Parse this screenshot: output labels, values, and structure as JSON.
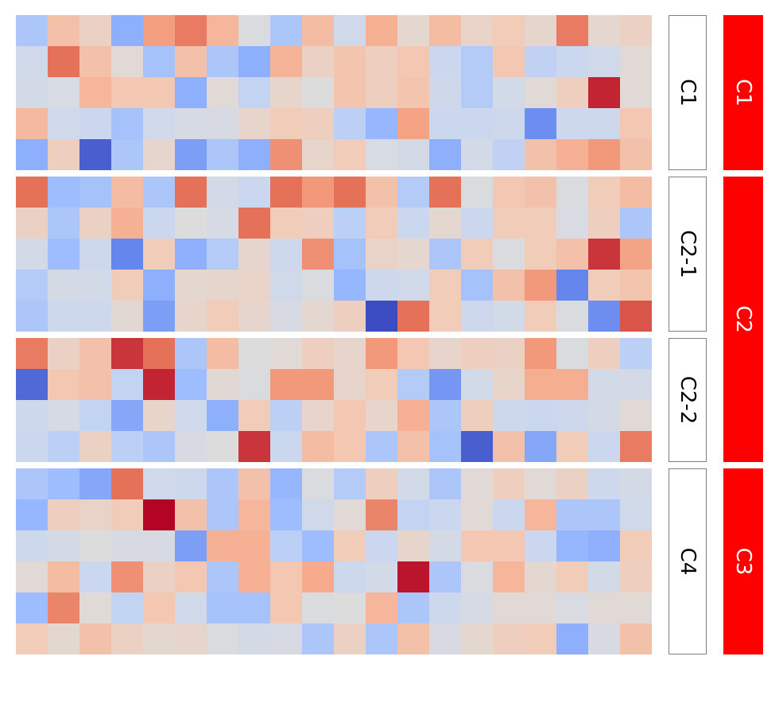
{
  "chart_data": {
    "type": "heatmap",
    "colormap": {
      "name": "coolwarm",
      "range": [
        0,
        1
      ],
      "stops": [
        "#3b4cc0",
        "#6788ee",
        "#9abbff",
        "#c9d7f0",
        "#dddcdc",
        "#f2cbb7",
        "#f7a889",
        "#e26952",
        "#b40426"
      ]
    },
    "columns": 20,
    "row_groups": [
      {
        "label": "C1",
        "rows": [
          [
            0.3,
            0.66,
            0.58,
            0.22,
            0.77,
            0.84,
            0.7,
            0.48,
            0.3,
            0.68,
            0.42,
            0.72,
            0.54,
            0.68,
            0.57,
            0.62,
            0.55,
            0.84,
            0.54,
            0.58
          ],
          [
            0.42,
            0.86,
            0.66,
            0.52,
            0.28,
            0.66,
            0.3,
            0.22,
            0.71,
            0.58,
            0.65,
            0.6,
            0.64,
            0.38,
            0.32,
            0.64,
            0.35,
            0.38,
            0.42,
            0.52
          ],
          [
            0.43,
            0.47,
            0.7,
            0.64,
            0.64,
            0.22,
            0.52,
            0.36,
            0.56,
            0.5,
            0.65,
            0.6,
            0.65,
            0.41,
            0.32,
            0.43,
            0.52,
            0.6,
            0.96,
            0.52
          ],
          [
            0.69,
            0.42,
            0.38,
            0.28,
            0.42,
            0.45,
            0.46,
            0.56,
            0.62,
            0.6,
            0.34,
            0.24,
            0.76,
            0.38,
            0.38,
            0.4,
            0.14,
            0.4,
            0.4,
            0.64
          ],
          [
            0.22,
            0.6,
            0.04,
            0.3,
            0.55,
            0.18,
            0.3,
            0.22,
            0.8,
            0.56,
            0.62,
            0.47,
            0.44,
            0.22,
            0.43,
            0.35,
            0.66,
            0.72,
            0.78,
            0.66
          ]
        ]
      },
      {
        "label": "C2-1",
        "rows": [
          [
            0.86,
            0.26,
            0.28,
            0.68,
            0.3,
            0.86,
            0.43,
            0.38,
            0.86,
            0.78,
            0.86,
            0.66,
            0.32,
            0.86,
            0.48,
            0.64,
            0.66,
            0.48,
            0.62,
            0.68
          ],
          [
            0.58,
            0.3,
            0.58,
            0.72,
            0.38,
            0.5,
            0.45,
            0.86,
            0.62,
            0.6,
            0.34,
            0.62,
            0.38,
            0.54,
            0.38,
            0.62,
            0.62,
            0.47,
            0.6,
            0.3
          ],
          [
            0.43,
            0.26,
            0.4,
            0.12,
            0.62,
            0.22,
            0.32,
            0.55,
            0.4,
            0.8,
            0.28,
            0.57,
            0.54,
            0.3,
            0.62,
            0.48,
            0.62,
            0.66,
            0.94,
            0.76
          ],
          [
            0.32,
            0.44,
            0.43,
            0.62,
            0.22,
            0.54,
            0.55,
            0.57,
            0.42,
            0.48,
            0.24,
            0.4,
            0.42,
            0.62,
            0.28,
            0.66,
            0.78,
            0.12,
            0.62,
            0.65
          ],
          [
            0.3,
            0.4,
            0.4,
            0.53,
            0.18,
            0.56,
            0.62,
            0.55,
            0.46,
            0.54,
            0.6,
            0.0,
            0.86,
            0.62,
            0.4,
            0.43,
            0.62,
            0.48,
            0.14,
            0.9
          ]
        ]
      },
      {
        "label": "C2-2",
        "rows": [
          [
            0.84,
            0.58,
            0.66,
            0.94,
            0.86,
            0.3,
            0.68,
            0.5,
            0.52,
            0.6,
            0.56,
            0.78,
            0.64,
            0.56,
            0.6,
            0.58,
            0.78,
            0.48,
            0.6,
            0.34
          ],
          [
            0.06,
            0.64,
            0.66,
            0.36,
            0.96,
            0.26,
            0.53,
            0.48,
            0.78,
            0.78,
            0.56,
            0.62,
            0.32,
            0.16,
            0.43,
            0.56,
            0.73,
            0.73,
            0.43,
            0.44
          ],
          [
            0.4,
            0.45,
            0.36,
            0.2,
            0.56,
            0.42,
            0.22,
            0.62,
            0.34,
            0.56,
            0.64,
            0.56,
            0.72,
            0.3,
            0.6,
            0.4,
            0.38,
            0.4,
            0.44,
            0.52
          ],
          [
            0.38,
            0.34,
            0.58,
            0.34,
            0.3,
            0.46,
            0.5,
            0.94,
            0.38,
            0.68,
            0.64,
            0.3,
            0.66,
            0.28,
            0.04,
            0.66,
            0.2,
            0.62,
            0.38,
            0.84
          ]
        ]
      },
      {
        "label": "C4",
        "rows": [
          [
            0.3,
            0.26,
            0.2,
            0.86,
            0.42,
            0.4,
            0.3,
            0.66,
            0.24,
            0.48,
            0.32,
            0.6,
            0.43,
            0.3,
            0.52,
            0.6,
            0.52,
            0.58,
            0.4,
            0.44
          ],
          [
            0.24,
            0.6,
            0.57,
            0.62,
            1.0,
            0.66,
            0.3,
            0.7,
            0.26,
            0.42,
            0.52,
            0.82,
            0.36,
            0.38,
            0.52,
            0.38,
            0.7,
            0.3,
            0.3,
            0.42
          ],
          [
            0.4,
            0.44,
            0.5,
            0.46,
            0.46,
            0.18,
            0.72,
            0.72,
            0.34,
            0.26,
            0.62,
            0.38,
            0.56,
            0.44,
            0.64,
            0.64,
            0.38,
            0.24,
            0.22,
            0.62
          ],
          [
            0.52,
            0.68,
            0.38,
            0.8,
            0.58,
            0.64,
            0.3,
            0.72,
            0.64,
            0.74,
            0.4,
            0.43,
            0.98,
            0.3,
            0.48,
            0.7,
            0.54,
            0.62,
            0.43,
            0.6
          ],
          [
            0.26,
            0.82,
            0.52,
            0.36,
            0.64,
            0.42,
            0.28,
            0.28,
            0.64,
            0.48,
            0.5,
            0.7,
            0.3,
            0.4,
            0.45,
            0.52,
            0.52,
            0.47,
            0.52,
            0.52
          ],
          [
            0.62,
            0.54,
            0.66,
            0.58,
            0.54,
            0.56,
            0.48,
            0.44,
            0.46,
            0.3,
            0.58,
            0.3,
            0.66,
            0.46,
            0.54,
            0.6,
            0.62,
            0.22,
            0.46,
            0.66
          ]
        ]
      }
    ],
    "column_groups": [
      {
        "label": "C1",
        "covers": [
          "C1"
        ],
        "color": "#ff0000"
      },
      {
        "label": "C2",
        "covers": [
          "C2-1",
          "C2-2"
        ],
        "color": "#ff0000"
      },
      {
        "label": "C3",
        "covers": [
          "C4"
        ],
        "color": "#ff0000"
      }
    ]
  }
}
